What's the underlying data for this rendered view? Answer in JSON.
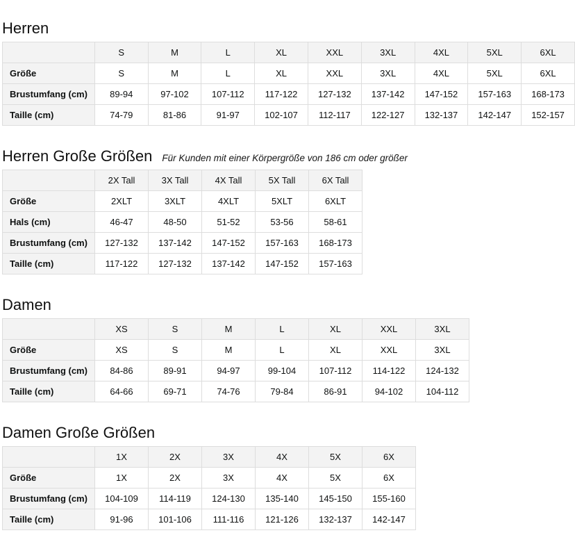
{
  "colors": {
    "header_cell_bg": "#f3f3f3",
    "table_border": "#dddddd",
    "text": "#0f1111"
  },
  "sections": [
    {
      "id": "herren",
      "title": "Herren",
      "columns": [
        "S",
        "M",
        "L",
        "XL",
        "XXL",
        "3XL",
        "4XL",
        "5XL",
        "6XL"
      ],
      "rows": [
        {
          "label": "Größe",
          "cells": [
            "S",
            "M",
            "L",
            "XL",
            "XXL",
            "3XL",
            "4XL",
            "5XL",
            "6XL"
          ]
        },
        {
          "label": "Brustumfang (cm)",
          "cells": [
            "89-94",
            "97-102",
            "107-112",
            "117-122",
            "127-132",
            "137-142",
            "147-152",
            "157-163",
            "168-173"
          ]
        },
        {
          "label": "Taille (cm)",
          "cells": [
            "74-79",
            "81-86",
            "91-97",
            "102-107",
            "112-117",
            "122-127",
            "132-137",
            "142-147",
            "152-157"
          ]
        }
      ]
    },
    {
      "id": "herren-grosse-groessen",
      "title": "Herren Große Größen",
      "subtitle": "Für Kunden mit einer Körpergröße von 186 cm oder größer",
      "columns": [
        "2X Tall",
        "3X Tall",
        "4X Tall",
        "5X Tall",
        "6X Tall"
      ],
      "rows": [
        {
          "label": "Größe",
          "cells": [
            "2XLT",
            "3XLT",
            "4XLT",
            "5XLT",
            "6XLT"
          ]
        },
        {
          "label": "Hals (cm)",
          "cells": [
            "46-47",
            "48-50",
            "51-52",
            "53-56",
            "58-61"
          ]
        },
        {
          "label": "Brustumfang (cm)",
          "cells": [
            "127-132",
            "137-142",
            "147-152",
            "157-163",
            "168-173"
          ]
        },
        {
          "label": "Taille (cm)",
          "cells": [
            "117-122",
            "127-132",
            "137-142",
            "147-152",
            "157-163"
          ]
        }
      ]
    },
    {
      "id": "damen",
      "title": "Damen",
      "columns": [
        "XS",
        "S",
        "M",
        "L",
        "XL",
        "XXL",
        "3XL"
      ],
      "rows": [
        {
          "label": "Größe",
          "cells": [
            "XS",
            "S",
            "M",
            "L",
            "XL",
            "XXL",
            "3XL"
          ]
        },
        {
          "label": "Brustumfang (cm)",
          "cells": [
            "84-86",
            "89-91",
            "94-97",
            "99-104",
            "107-112",
            "114-122",
            "124-132"
          ]
        },
        {
          "label": "Taille (cm)",
          "cells": [
            "64-66",
            "69-71",
            "74-76",
            "79-84",
            "86-91",
            "94-102",
            "104-112"
          ]
        }
      ]
    },
    {
      "id": "damen-grosse-groessen",
      "title": "Damen Große Größen",
      "columns": [
        "1X",
        "2X",
        "3X",
        "4X",
        "5X",
        "6X"
      ],
      "rows": [
        {
          "label": "Größe",
          "cells": [
            "1X",
            "2X",
            "3X",
            "4X",
            "5X",
            "6X"
          ]
        },
        {
          "label": "Brustumfang (cm)",
          "cells": [
            "104-109",
            "114-119",
            "124-130",
            "135-140",
            "145-150",
            "155-160"
          ]
        },
        {
          "label": "Taille (cm)",
          "cells": [
            "91-96",
            "101-106",
            "111-116",
            "121-126",
            "132-137",
            "142-147"
          ]
        }
      ]
    }
  ]
}
